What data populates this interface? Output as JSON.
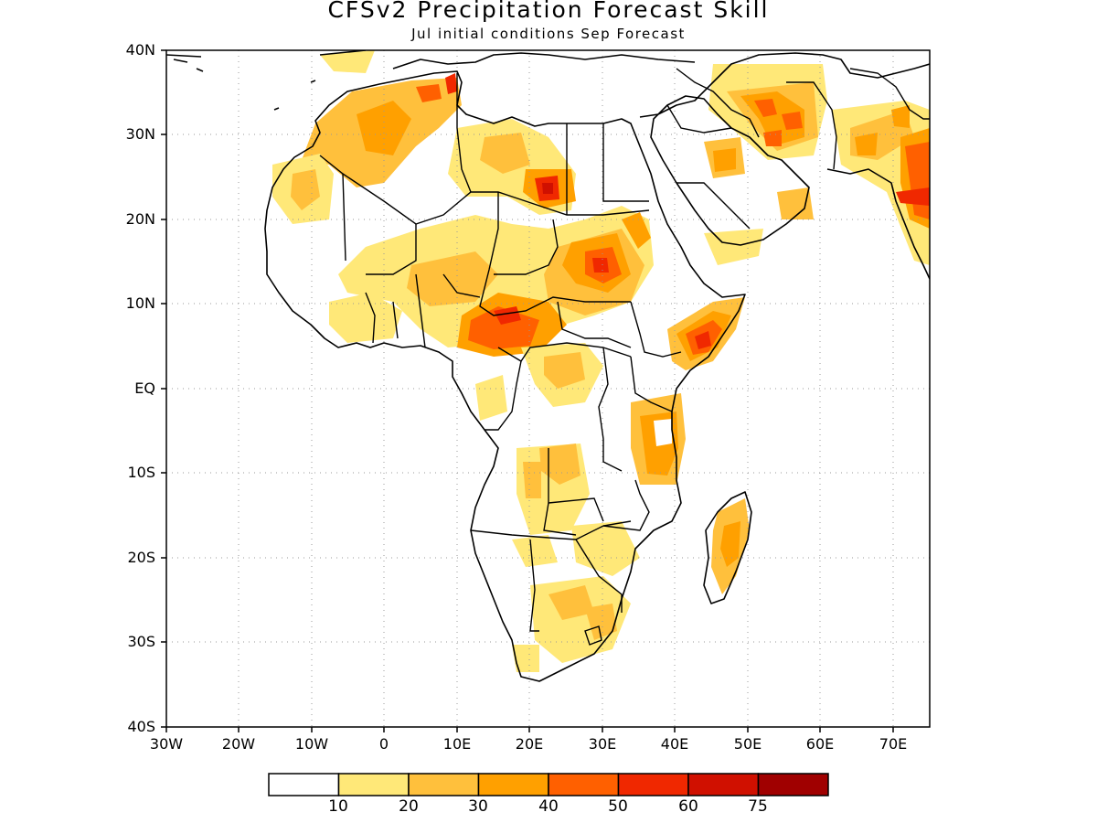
{
  "title": "CFSv2 Precipitation Forecast Skill",
  "subtitle": "Jul initial conditions  Sep Forecast",
  "map": {
    "region": "Africa",
    "projection": "lat-lon",
    "lat_range": [
      -40,
      40
    ],
    "lon_range": [
      -30,
      75
    ],
    "grid": "dotted",
    "y_ticks": [
      "40N",
      "30N",
      "20N",
      "10N",
      "EQ",
      "10S",
      "20S",
      "30S",
      "40S"
    ],
    "x_ticks": [
      "30W",
      "20W",
      "10W",
      "0",
      "10E",
      "20E",
      "30E",
      "40E",
      "50E",
      "60E",
      "70E"
    ]
  },
  "colorbar": {
    "levels": [
      "10",
      "20",
      "30",
      "40",
      "50",
      "60",
      "75"
    ],
    "colors": [
      "#ffffff",
      "#ffe878",
      "#ffc03c",
      "#ffa000",
      "#ff6000",
      "#f02800",
      "#d01000",
      "#a00000"
    ]
  }
}
